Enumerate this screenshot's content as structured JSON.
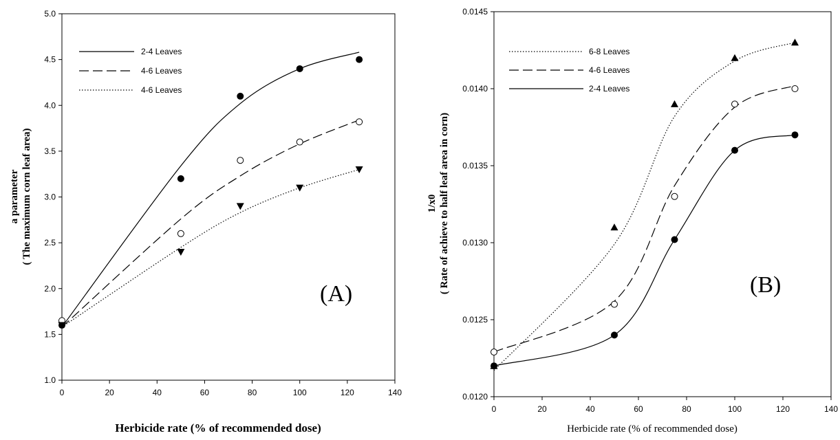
{
  "chart_data": [
    {
      "type": "line",
      "panel": "(A)",
      "xlabel": "Herbicide rate (% of recommended dose)",
      "ylabel_line1": "a parameter",
      "ylabel_line2": "( The maximum corn leaf area)",
      "xlim": [
        0,
        140
      ],
      "ylim": [
        1.0,
        5.0
      ],
      "xticks": [
        "0",
        "20",
        "40",
        "60",
        "80",
        "100",
        "120",
        "140"
      ],
      "yticks": [
        "1.0",
        "1.5",
        "2.0",
        "2.5",
        "3.0",
        "3.5",
        "4.0",
        "4.5",
        "5.0"
      ],
      "legend_position": "top-left",
      "x": [
        0,
        50,
        75,
        100,
        125
      ],
      "series": [
        {
          "name": "2-4 Leaves",
          "line_style": "solid",
          "marker": "filled-circle",
          "values": [
            1.6,
            3.2,
            4.1,
            4.4,
            4.5
          ],
          "fit": [
            1.58,
            3.34,
            4.02,
            4.4,
            4.58
          ]
        },
        {
          "name": "4-6 Leaves",
          "line_style": "dashed",
          "marker": "open-circle",
          "values": [
            1.65,
            2.6,
            3.4,
            3.6,
            3.82
          ],
          "fit": [
            1.58,
            2.76,
            3.23,
            3.58,
            3.84
          ]
        },
        {
          "name": "4-6 Leaves",
          "line_style": "dotted",
          "marker": "filled-triangle-down",
          "values": [
            1.6,
            2.4,
            2.9,
            3.1,
            3.3
          ],
          "fit": [
            1.58,
            2.45,
            2.83,
            3.1,
            3.3
          ]
        }
      ]
    },
    {
      "type": "line",
      "panel": "(B)",
      "xlabel": "Herbicide rate (% of recommended dose)",
      "ylabel_line1": "1/x0",
      "ylabel_line2": "( Rate of achieve to half leaf area in corn)",
      "xlim": [
        0,
        140
      ],
      "ylim": [
        0.012,
        0.0145
      ],
      "xticks": [
        "0",
        "20",
        "40",
        "60",
        "80",
        "100",
        "120",
        "140"
      ],
      "yticks": [
        "0.0120",
        "0.0125",
        "0.0130",
        "0.0135",
        "0.0140",
        "0.0145"
      ],
      "legend_position": "top-left",
      "x": [
        0,
        50,
        75,
        100,
        125
      ],
      "series": [
        {
          "name": "6-8 Leaves",
          "line_style": "dotted",
          "marker": "filled-triangle-up",
          "values": [
            0.0122,
            0.0131,
            0.0139,
            0.0142,
            0.0143
          ],
          "fit": [
            0.01217,
            0.01299,
            0.01382,
            0.01418,
            0.0143
          ]
        },
        {
          "name": "4-6 Leaves",
          "line_style": "dashed",
          "marker": "open-circle",
          "values": [
            0.01229,
            0.0126,
            0.0133,
            0.0139,
            0.014
          ],
          "fit": [
            0.01229,
            0.01262,
            0.01337,
            0.01388,
            0.01402
          ]
        },
        {
          "name": "2-4 Leaves",
          "line_style": "solid",
          "marker": "filled-circle",
          "values": [
            0.0122,
            0.0124,
            0.01302,
            0.0136,
            0.0137
          ],
          "fit": [
            0.0122,
            0.0124,
            0.01302,
            0.0136,
            0.0137
          ]
        }
      ]
    }
  ]
}
